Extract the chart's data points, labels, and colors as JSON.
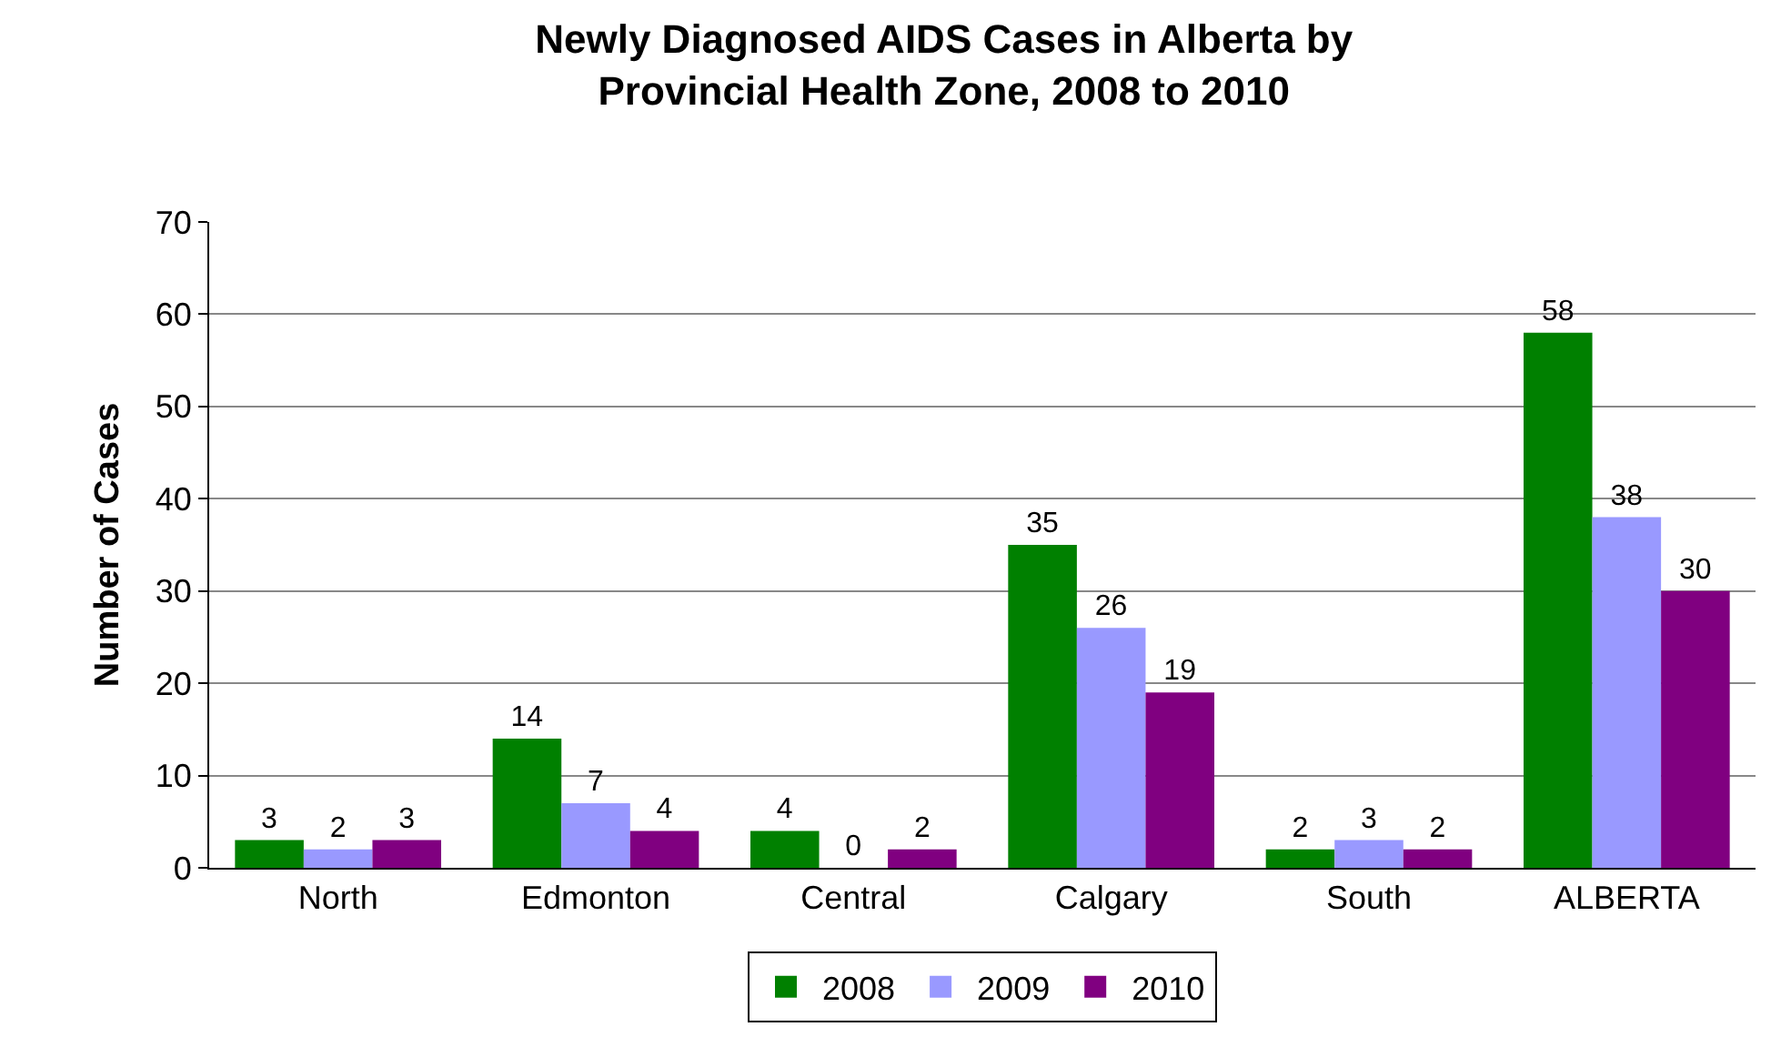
{
  "chart_data": {
    "type": "bar",
    "title": "Newly Diagnosed AIDS Cases in Alberta by\nProvincial Health Zone, 2008 to 2010",
    "ylabel": "Number of Cases",
    "categories": [
      "North",
      "Edmonton",
      "Central",
      "Calgary",
      "South",
      "ALBERTA"
    ],
    "series": [
      {
        "name": "2008",
        "color": "#008000",
        "values": [
          3,
          14,
          4,
          35,
          2,
          58
        ]
      },
      {
        "name": "2009",
        "color": "#9999ff",
        "values": [
          2,
          7,
          0,
          26,
          3,
          38
        ]
      },
      {
        "name": "2010",
        "color": "#800080",
        "values": [
          3,
          4,
          2,
          19,
          2,
          30
        ]
      }
    ],
    "ylim": [
      0,
      70
    ],
    "yticks": [
      0,
      10,
      20,
      30,
      40,
      50,
      60,
      70
    ],
    "grid": "y",
    "legend": "bottom",
    "data_labels": true
  }
}
